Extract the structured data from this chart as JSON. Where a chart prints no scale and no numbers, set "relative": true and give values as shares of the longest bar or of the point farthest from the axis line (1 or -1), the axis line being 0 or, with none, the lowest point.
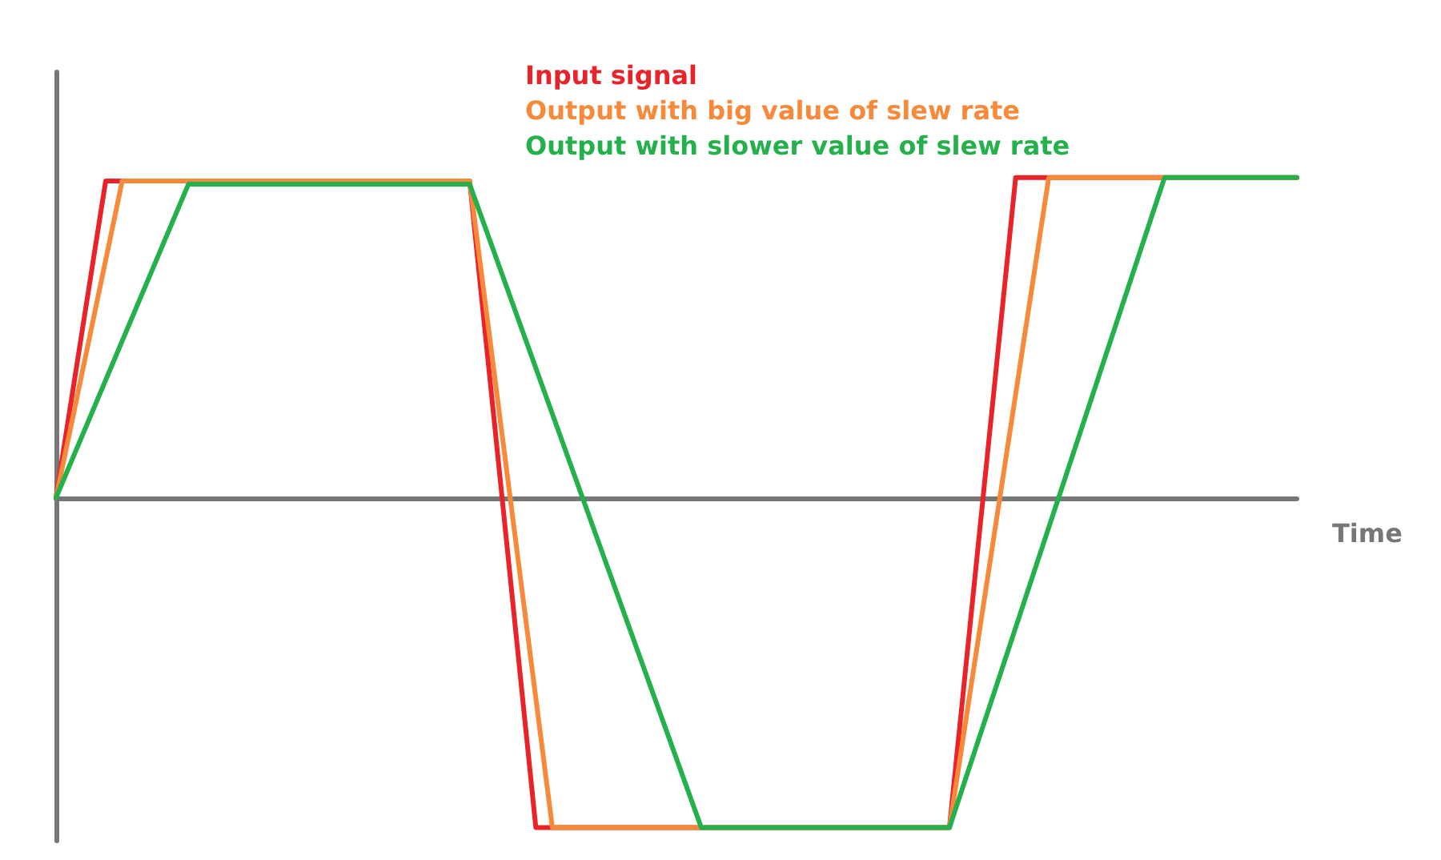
{
  "chart_data": {
    "type": "line",
    "relative": true,
    "xlabel": "Time",
    "legend": "top",
    "line_style": "solid",
    "marker": "none",
    "grid": false,
    "categories": [
      null,
      null,
      null,
      null,
      null,
      null,
      null,
      null,
      null,
      null,
      null,
      null,
      null,
      null,
      null,
      null,
      null,
      null,
      null,
      null,
      null,
      null,
      null,
      null,
      null,
      null,
      null,
      null,
      null,
      null,
      null,
      null,
      null,
      null,
      null,
      null,
      null,
      null,
      null,
      null,
      null,
      null,
      null,
      null,
      null,
      null,
      null,
      null,
      null,
      null,
      null,
      null,
      null,
      null,
      null,
      null,
      null,
      null,
      null,
      null,
      null,
      null,
      null,
      null,
      null,
      null,
      null,
      null,
      null,
      null,
      null,
      null,
      null,
      null,
      null,
      null
    ],
    "series": [
      {
        "name": "Input signal",
        "color": "#e8232a",
        "values": [
          0,
          null,
          null,
          0.96,
          null,
          null,
          null,
          null,
          null,
          null,
          null,
          null,
          null,
          null,
          null,
          null,
          null,
          null,
          null,
          null,
          null,
          null,
          null,
          null,
          null,
          0.96,
          null,
          null,
          null,
          -1,
          null,
          null,
          null,
          null,
          null,
          null,
          null,
          null,
          null,
          null,
          null,
          null,
          null,
          null,
          null,
          null,
          null,
          null,
          null,
          null,
          null,
          null,
          null,
          null,
          -1,
          null,
          null,
          null,
          0.97,
          null,
          null,
          null,
          null,
          null,
          null,
          null,
          null,
          null,
          null,
          null,
          null,
          null,
          null,
          null,
          null,
          0.97
        ]
      },
      {
        "name": "Output with big value of slew rate",
        "color": "#f7893a",
        "values": [
          0,
          null,
          null,
          null,
          0.96,
          null,
          null,
          null,
          null,
          null,
          null,
          null,
          null,
          null,
          null,
          null,
          null,
          null,
          null,
          null,
          null,
          null,
          null,
          null,
          null,
          0.96,
          null,
          null,
          null,
          null,
          -1,
          null,
          null,
          null,
          null,
          null,
          null,
          null,
          null,
          null,
          null,
          null,
          null,
          null,
          null,
          null,
          null,
          null,
          null,
          null,
          null,
          null,
          null,
          null,
          -1,
          null,
          null,
          null,
          null,
          null,
          0.97,
          null,
          null,
          null,
          null,
          null,
          null,
          null,
          null,
          null,
          null,
          null,
          null,
          null,
          null,
          0.97
        ]
      },
      {
        "name": "Output with slower value of slew rate",
        "color": "#24b04b",
        "values": [
          0,
          null,
          null,
          null,
          null,
          null,
          null,
          null,
          0.95,
          null,
          null,
          null,
          null,
          null,
          null,
          null,
          null,
          null,
          null,
          null,
          null,
          null,
          null,
          null,
          null,
          0.95,
          null,
          null,
          null,
          null,
          null,
          null,
          null,
          null,
          null,
          null,
          null,
          null,
          null,
          -1,
          null,
          null,
          null,
          null,
          null,
          null,
          null,
          null,
          null,
          null,
          null,
          null,
          null,
          null,
          -1,
          null,
          null,
          null,
          null,
          null,
          null,
          null,
          null,
          null,
          null,
          null,
          null,
          0.97,
          null,
          null,
          null,
          null,
          null,
          null,
          null,
          0.97
        ]
      }
    ]
  }
}
